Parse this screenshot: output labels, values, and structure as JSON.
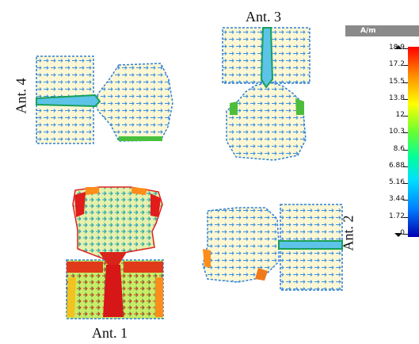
{
  "labels": {
    "ant1": "Ant. 1",
    "ant2": "Ant. 2",
    "ant3": "Ant. 3",
    "ant4": "Ant. 4"
  },
  "legend": {
    "unit": "A/m",
    "ticks": [
      "18.9",
      "17.2",
      "15.5",
      "13.8",
      "12",
      "10.3",
      "8.6",
      "6.88",
      "5.16",
      "3.44",
      "1.72",
      "0"
    ]
  },
  "colors": {
    "patch": "#fdf7d4",
    "outline": "#2f7fd6",
    "high": "#e81616",
    "mid": "#7fdc3a",
    "low": "#18c6e0"
  },
  "current_levels": {
    "ant1": "high",
    "ant2": "low",
    "ant3": "low",
    "ant4": "low"
  }
}
